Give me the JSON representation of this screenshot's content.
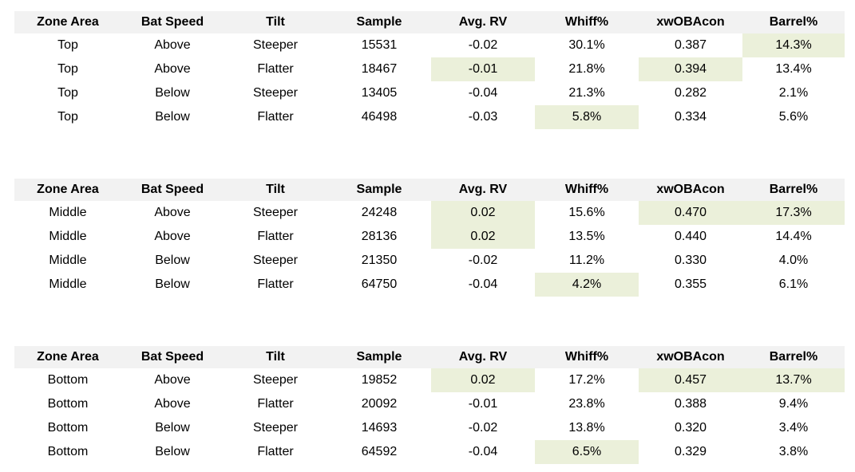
{
  "colors": {
    "page_bg": "#ffffff",
    "header_bg": "#f2f2f2",
    "highlight_bg": "#ebf0da",
    "text": "#000000"
  },
  "column_keys": [
    "zone-area",
    "bat-speed",
    "tilt",
    "sample",
    "avg-rv",
    "whiff-pct",
    "xwobacon",
    "barrel-pct"
  ],
  "chart_data": [
    {
      "type": "table",
      "zone": "Top",
      "columns": [
        "Zone Area",
        "Bat Speed",
        "Tilt",
        "Sample",
        "Avg. RV",
        "Whiff%",
        "xwOBAcon",
        "Barrel%"
      ],
      "rows": [
        [
          "Top",
          "Above",
          "Steeper",
          "15531",
          "-0.02",
          "30.1%",
          "0.387",
          "14.3%"
        ],
        [
          "Top",
          "Above",
          "Flatter",
          "18467",
          "-0.01",
          "21.8%",
          "0.394",
          "13.4%"
        ],
        [
          "Top",
          "Below",
          "Steeper",
          "13405",
          "-0.04",
          "21.3%",
          "0.282",
          "2.1%"
        ],
        [
          "Top",
          "Below",
          "Flatter",
          "46498",
          "-0.03",
          "5.8%",
          "0.334",
          "5.6%"
        ]
      ],
      "highlighted_cells": [
        [
          0,
          7
        ],
        [
          1,
          4
        ],
        [
          1,
          6
        ],
        [
          3,
          5
        ]
      ]
    },
    {
      "type": "table",
      "zone": "Middle",
      "columns": [
        "Zone Area",
        "Bat Speed",
        "Tilt",
        "Sample",
        "Avg. RV",
        "Whiff%",
        "xwOBAcon",
        "Barrel%"
      ],
      "rows": [
        [
          "Middle",
          "Above",
          "Steeper",
          "24248",
          "0.02",
          "15.6%",
          "0.470",
          "17.3%"
        ],
        [
          "Middle",
          "Above",
          "Flatter",
          "28136",
          "0.02",
          "13.5%",
          "0.440",
          "14.4%"
        ],
        [
          "Middle",
          "Below",
          "Steeper",
          "21350",
          "-0.02",
          "11.2%",
          "0.330",
          "4.0%"
        ],
        [
          "Middle",
          "Below",
          "Flatter",
          "64750",
          "-0.04",
          "4.2%",
          "0.355",
          "6.1%"
        ]
      ],
      "highlighted_cells": [
        [
          0,
          4
        ],
        [
          0,
          6
        ],
        [
          0,
          7
        ],
        [
          1,
          4
        ],
        [
          3,
          5
        ]
      ]
    },
    {
      "type": "table",
      "zone": "Bottom",
      "columns": [
        "Zone Area",
        "Bat Speed",
        "Tilt",
        "Sample",
        "Avg. RV",
        "Whiff%",
        "xwOBAcon",
        "Barrel%"
      ],
      "rows": [
        [
          "Bottom",
          "Above",
          "Steeper",
          "19852",
          "0.02",
          "17.2%",
          "0.457",
          "13.7%"
        ],
        [
          "Bottom",
          "Above",
          "Flatter",
          "20092",
          "-0.01",
          "23.8%",
          "0.388",
          "9.4%"
        ],
        [
          "Bottom",
          "Below",
          "Steeper",
          "14693",
          "-0.02",
          "13.8%",
          "0.320",
          "3.4%"
        ],
        [
          "Bottom",
          "Below",
          "Flatter",
          "64592",
          "-0.04",
          "6.5%",
          "0.329",
          "3.8%"
        ]
      ],
      "highlighted_cells": [
        [
          0,
          4
        ],
        [
          0,
          6
        ],
        [
          0,
          7
        ],
        [
          3,
          5
        ]
      ]
    }
  ]
}
